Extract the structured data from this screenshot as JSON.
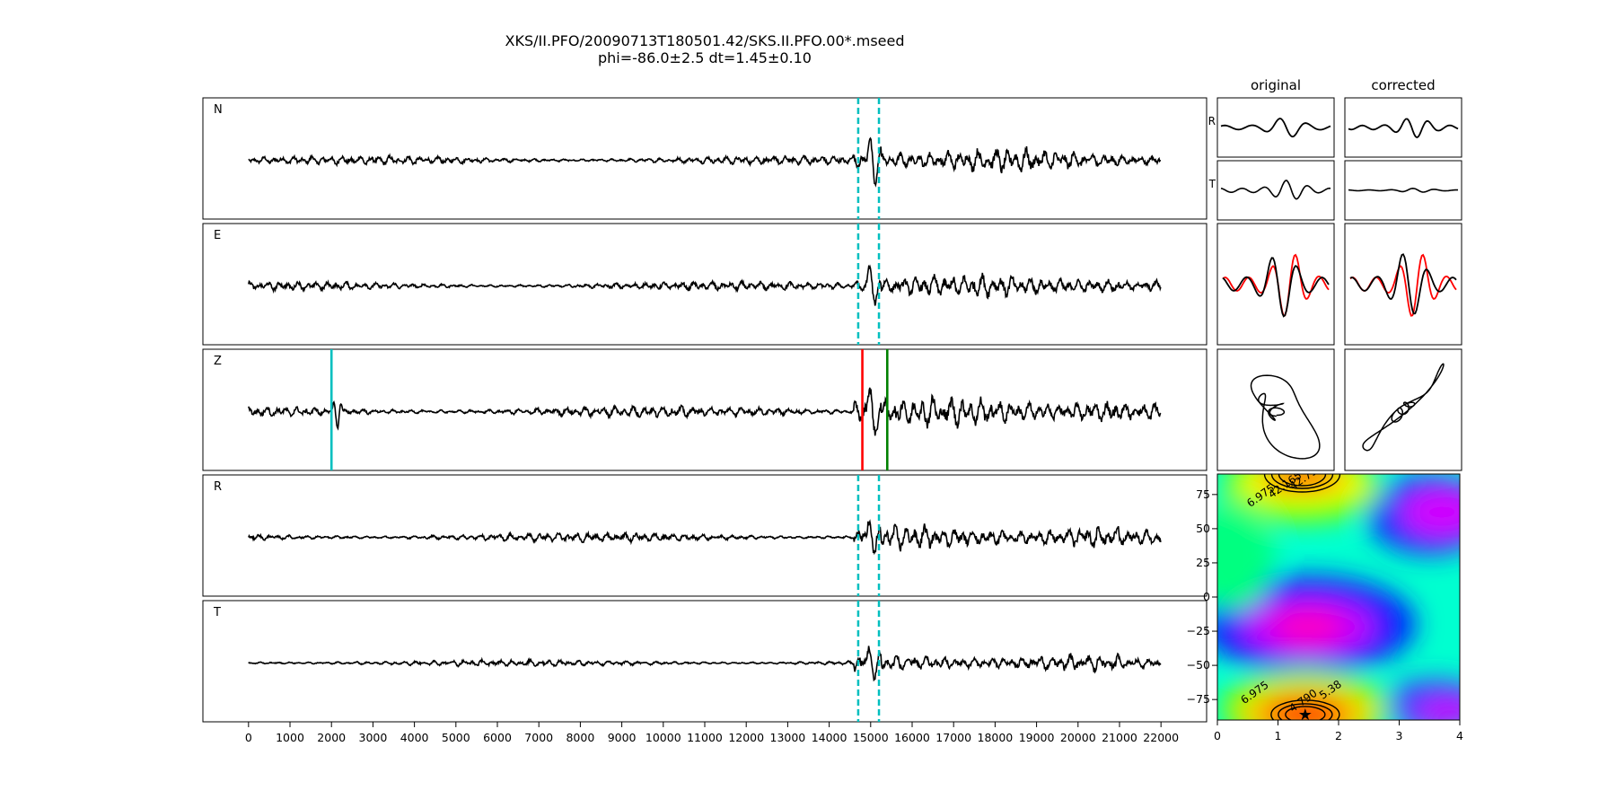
{
  "figure": {
    "title": "XKS/II.PFO/20090713T180501.42/SKS.II.PFO.00*.mseed",
    "subtitle": "phi=-86.0±2.5 dt=1.45±0.10"
  },
  "chart_data": [
    {
      "type": "line",
      "name": "seismogram-traces",
      "panels": [
        {
          "label": "N",
          "amp": 0.3,
          "window": [
            14700,
            15200
          ]
        },
        {
          "label": "E",
          "amp": 0.28,
          "window": [
            14700,
            15200
          ]
        },
        {
          "label": "Z",
          "amp": 0.38,
          "picks": [
            {
              "x": 2000,
              "color": "#00bfbf"
            },
            {
              "x": 14800,
              "color": "#ff0000"
            },
            {
              "x": 15400,
              "color": "#008000"
            }
          ]
        },
        {
          "label": "R",
          "amp": 0.3,
          "window": [
            14700,
            15200
          ]
        },
        {
          "label": "T",
          "amp": 0.22,
          "window": [
            14700,
            15200
          ]
        }
      ],
      "x_ticks": [
        0,
        1000,
        2000,
        3000,
        4000,
        5000,
        6000,
        7000,
        8000,
        9000,
        10000,
        11000,
        12000,
        13000,
        14000,
        15000,
        16000,
        17000,
        18000,
        19000,
        20000,
        21000,
        22000
      ],
      "xlim": [
        -1100,
        23100
      ],
      "signal_range": [
        0,
        22000
      ],
      "arrival": 14800,
      "window_color": "#00bfbf"
    },
    {
      "type": "line",
      "name": "particle-motion-panels",
      "column_titles": [
        "original",
        "corrected"
      ],
      "row_labels": [
        "R",
        "T"
      ],
      "overlay_colors": {
        "reference": "#ff0000",
        "trace": "#000000"
      }
    },
    {
      "type": "heatmap",
      "name": "splitting-error-surface",
      "xlim": [
        0,
        4
      ],
      "ylim": [
        -90,
        90
      ],
      "x_ticks": [
        0,
        1,
        2,
        3,
        4
      ],
      "y_ticks": [
        75,
        50,
        25,
        0,
        -25,
        -50,
        -75
      ],
      "best_fit": {
        "dt": 1.45,
        "phi": -86.0
      },
      "contour_labels": [
        "6.975",
        "5.38",
        "42.790",
        "42.165",
        "6.975",
        "5.38",
        "4.790",
        "8"
      ],
      "colormap": "gist_rainbow"
    }
  ]
}
